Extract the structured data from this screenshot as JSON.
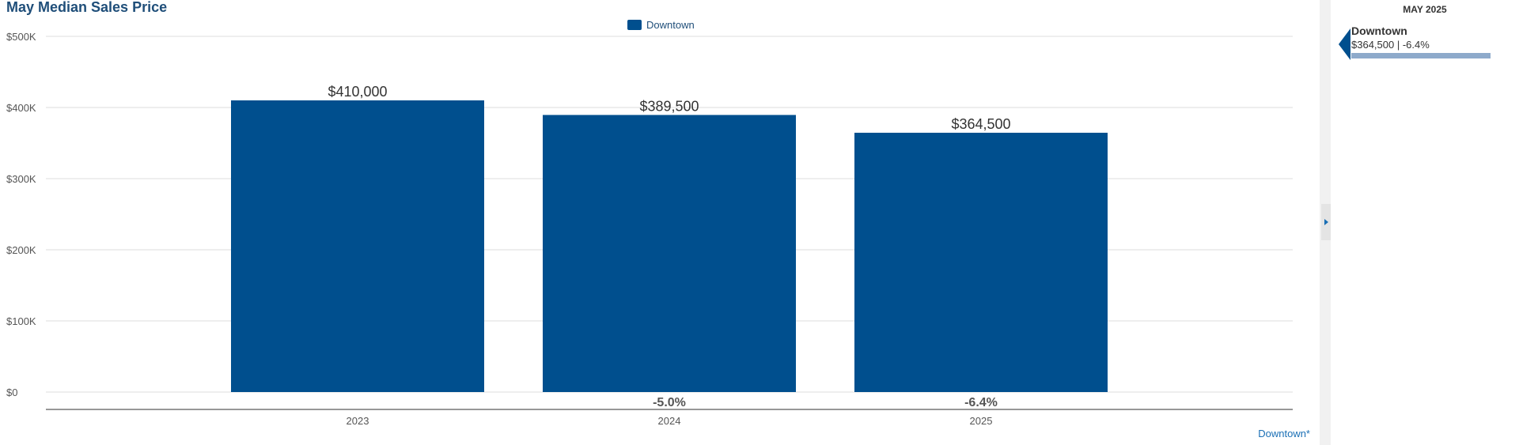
{
  "chart_data": {
    "type": "bar",
    "title": "May Median Sales Price",
    "categories": [
      "2023",
      "2024",
      "2025"
    ],
    "series": [
      {
        "name": "Downtown",
        "color": "#004f8e",
        "values": [
          410000,
          389500,
          364500
        ],
        "value_labels": [
          "$410,000",
          "$389,500",
          "$364,500"
        ],
        "change_labels": [
          "",
          "-5.0%",
          "-6.4%"
        ]
      }
    ],
    "yticks": [
      0,
      100000,
      200000,
      300000,
      400000,
      500000
    ],
    "ytick_labels": [
      "$0",
      "$100K",
      "$200K",
      "$300K",
      "$400K",
      "$500K"
    ],
    "ylim": [
      0,
      500000
    ],
    "grid": true,
    "legend_position": "top-center"
  },
  "side_panel": {
    "period": "MAY 2025",
    "entry_name": "Downtown",
    "entry_value": "$364,500 | -6.4%",
    "entry_fraction": 0.89,
    "entry_color": "#8eaacb"
  },
  "footnote": "Downtown*"
}
